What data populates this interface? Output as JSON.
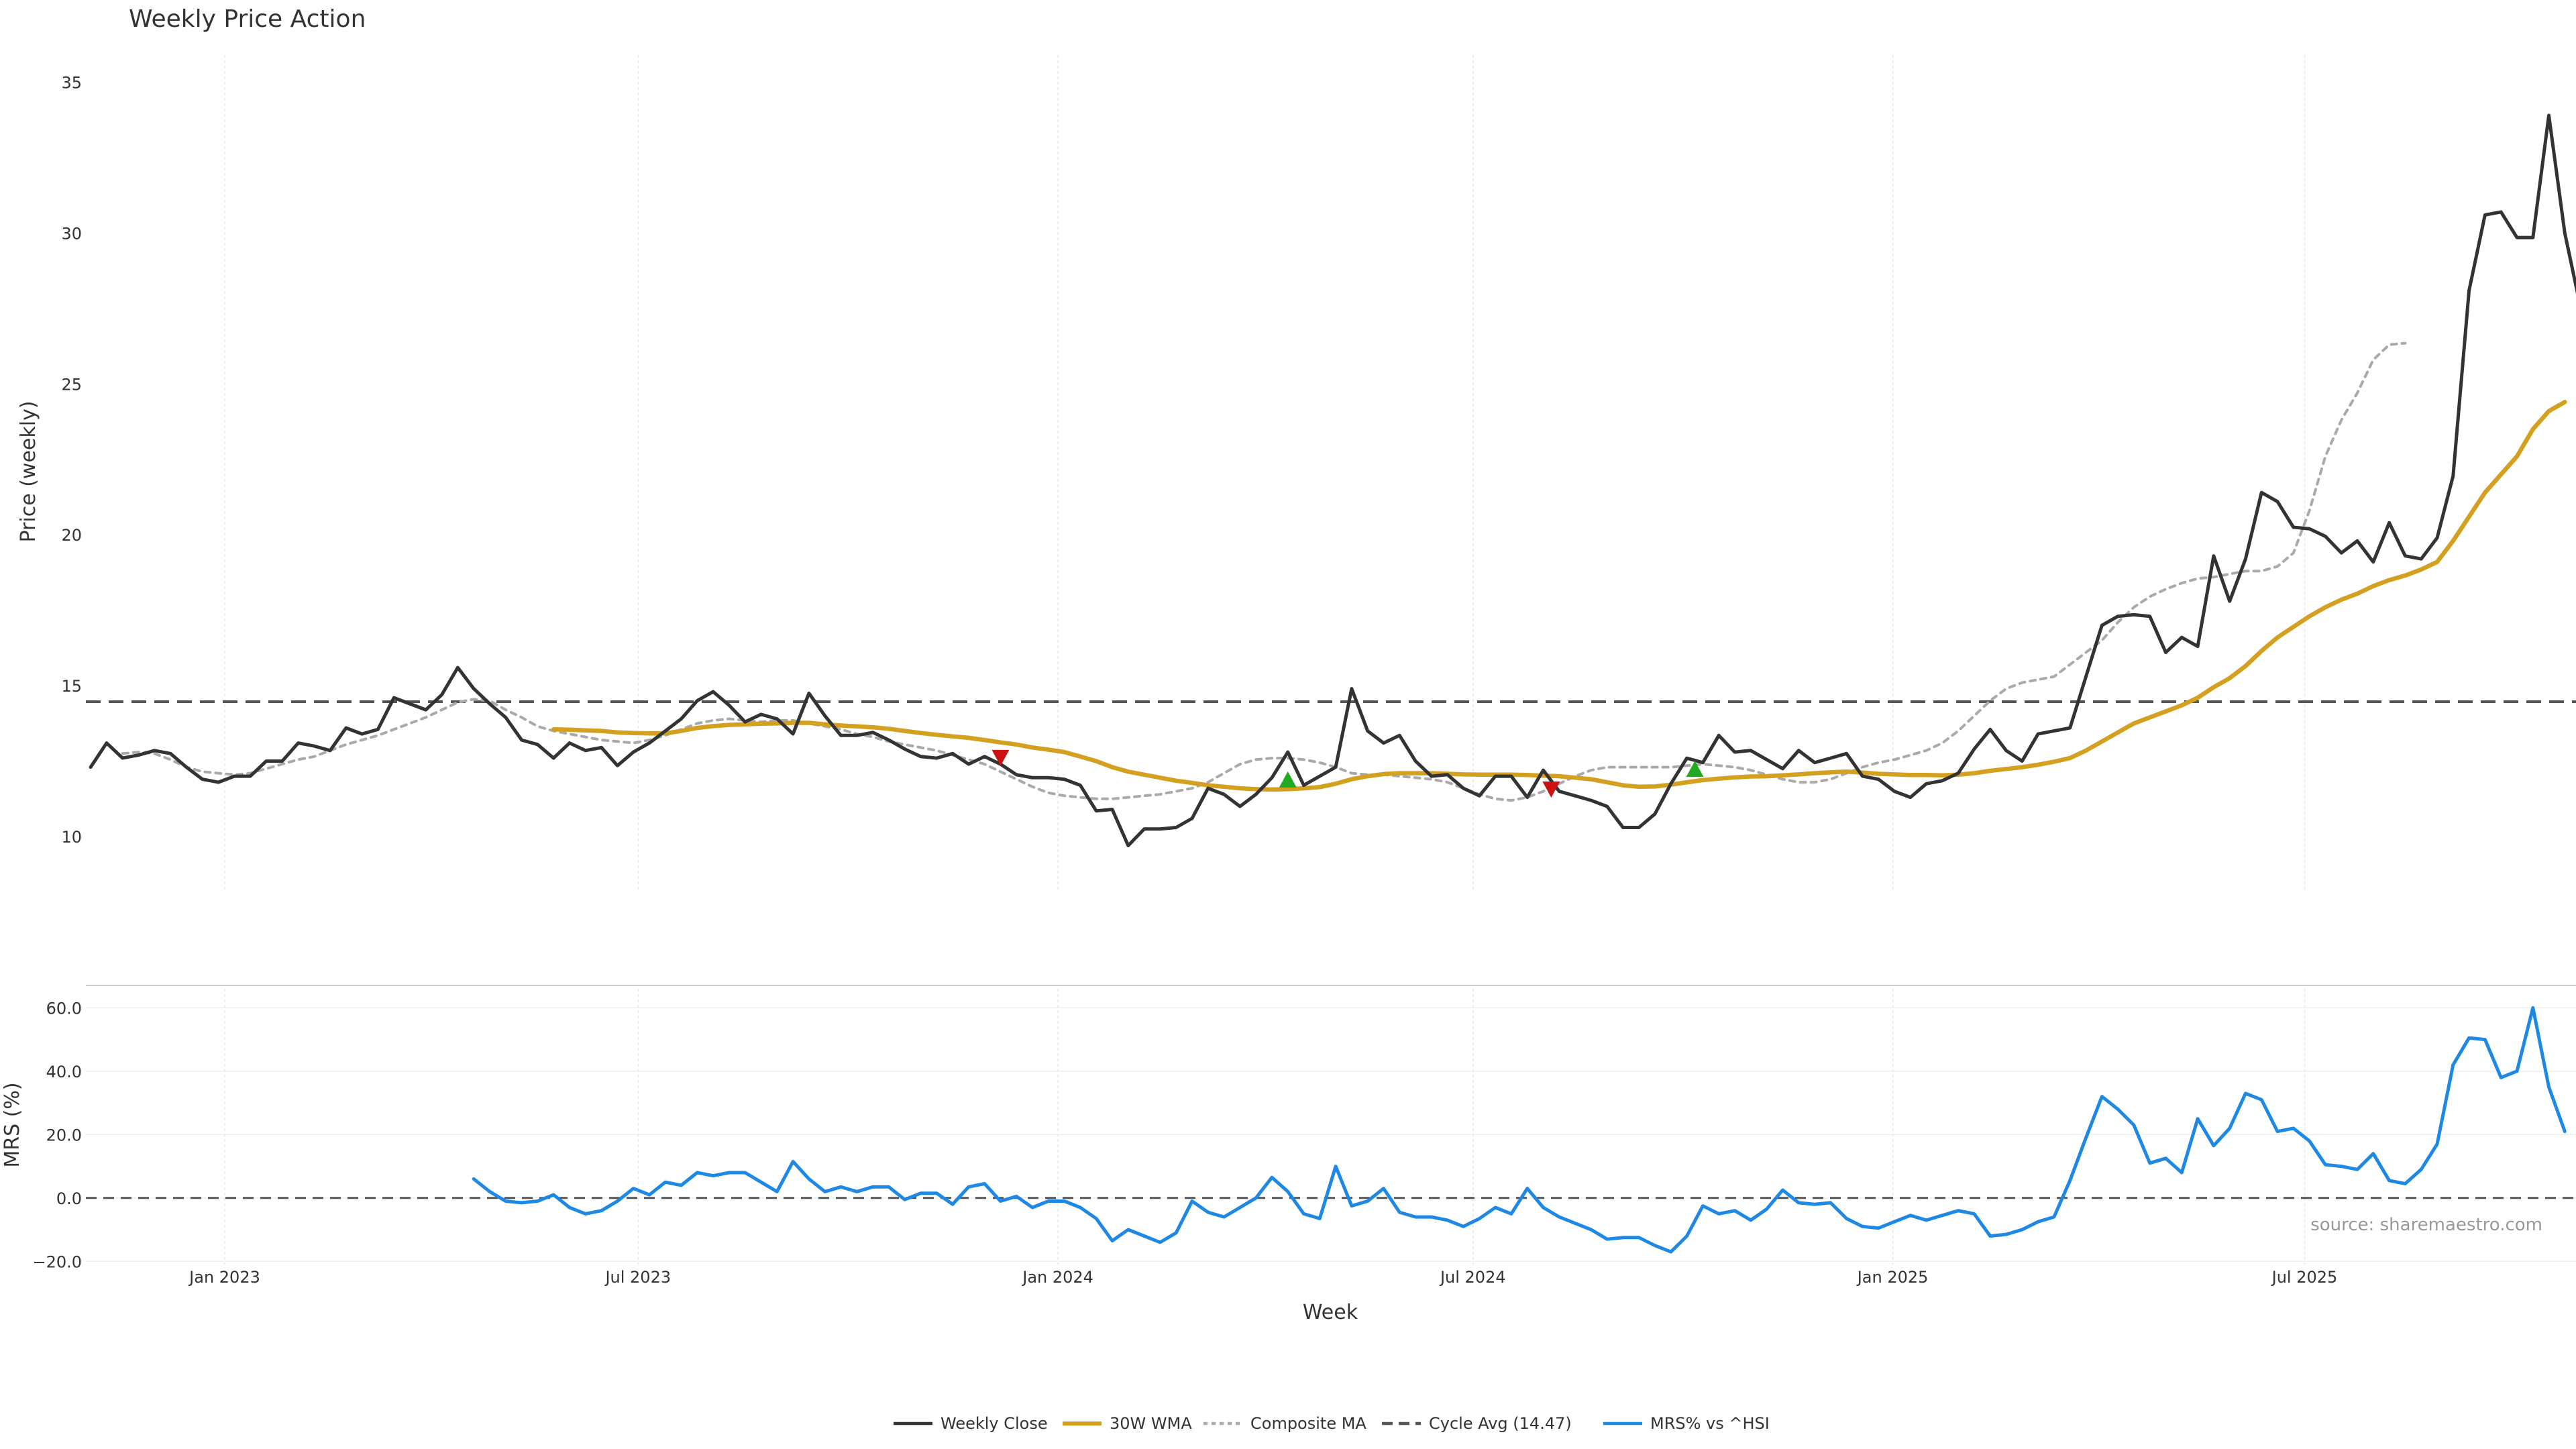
{
  "colors": {
    "close": "#333333",
    "wma": "#D4A020",
    "composite": "#AAAAAA",
    "cycle": "#555555",
    "mrs": "#1E88E5",
    "buy": "#22AA22",
    "sell": "#CC1111",
    "grid": "#E6E6E6"
  },
  "chart_data": {
    "type": "line",
    "title": "Weekly Price Action",
    "source": "source: sharemaestro.com",
    "xlabel": "Week",
    "x_ticks": [
      {
        "label": "Jan 2023",
        "week": 8.4
      },
      {
        "label": "Jul 2023",
        "week": 34.3
      },
      {
        "label": "Jan 2024",
        "week": 60.6
      },
      {
        "label": "Jul 2024",
        "week": 86.6
      },
      {
        "label": "Jan 2025",
        "week": 112.9
      },
      {
        "label": "Jul 2025",
        "week": 138.7
      }
    ],
    "xlim": [
      -0.3,
      155.7
    ],
    "price_panel": {
      "ylabel": "Price (weekly)",
      "ylim": [
        8.2,
        35.9
      ],
      "yticks": [
        10,
        15,
        20,
        25,
        30,
        35
      ],
      "cycle_avg": 14.47,
      "series": [
        {
          "name": "Weekly Close",
          "style": "solid",
          "start": 0,
          "values": [
            12.3,
            13.1,
            12.6,
            12.7,
            12.85,
            12.75,
            12.3,
            11.9,
            11.8,
            12.0,
            12.0,
            12.5,
            12.5,
            13.1,
            13.0,
            12.85,
            13.6,
            13.4,
            13.55,
            14.6,
            14.4,
            14.2,
            14.7,
            15.6,
            14.9,
            14.4,
            13.95,
            13.2,
            13.05,
            12.6,
            13.1,
            12.85,
            12.95,
            12.35,
            12.8,
            13.1,
            13.5,
            13.9,
            14.5,
            14.8,
            14.35,
            13.8,
            14.05,
            13.9,
            13.4,
            14.75,
            14.0,
            13.35,
            13.35,
            13.45,
            13.2,
            12.9,
            12.65,
            12.6,
            12.75,
            12.4,
            12.65,
            12.4,
            12.05,
            11.95,
            11.95,
            11.9,
            11.7,
            10.85,
            10.9,
            9.7,
            10.25,
            10.25,
            10.3,
            10.6,
            11.6,
            11.4,
            11.0,
            11.4,
            11.95,
            12.8,
            11.7,
            12.0,
            12.3,
            14.9,
            13.5,
            13.1,
            13.35,
            12.5,
            12.0,
            12.05,
            11.6,
            11.35,
            12.0,
            12.0,
            11.3,
            12.2,
            11.5,
            11.35,
            11.2,
            11.0,
            10.3,
            10.3,
            10.75,
            11.75,
            12.6,
            12.45,
            13.35,
            12.8,
            12.85,
            12.55,
            12.25,
            12.85,
            12.45,
            12.6,
            12.75,
            12.0,
            11.9,
            11.5,
            11.3,
            11.75,
            11.85,
            12.1,
            12.9,
            13.55,
            12.85,
            12.5,
            13.4,
            13.5,
            13.6,
            15.3,
            17.0,
            17.3,
            17.35,
            17.3,
            16.1,
            16.6,
            16.3,
            19.3,
            17.8,
            19.2,
            21.4,
            21.1,
            20.25,
            20.2,
            19.95,
            19.4,
            19.8,
            19.1,
            20.4,
            19.3,
            19.2,
            19.9,
            21.95,
            28.1,
            30.6,
            30.7,
            29.85,
            29.85,
            33.9,
            30.0,
            27.5
          ]
        },
        {
          "name": "Composite MA",
          "style": "dotted",
          "start": 2,
          "values": [
            12.75,
            12.8,
            12.75,
            12.55,
            12.3,
            12.15,
            12.1,
            12.05,
            12.1,
            12.25,
            12.4,
            12.55,
            12.65,
            12.85,
            13.05,
            13.2,
            13.35,
            13.55,
            13.75,
            13.95,
            14.2,
            14.45,
            14.55,
            14.5,
            14.2,
            13.95,
            13.65,
            13.5,
            13.4,
            13.3,
            13.2,
            13.15,
            13.1,
            13.2,
            13.35,
            13.55,
            13.75,
            13.85,
            13.9,
            13.85,
            13.8,
            13.85,
            13.85,
            13.75,
            13.65,
            13.55,
            13.4,
            13.3,
            13.15,
            13.05,
            12.95,
            12.85,
            12.7,
            12.55,
            12.4,
            12.15,
            11.9,
            11.65,
            11.45,
            11.35,
            11.3,
            11.25,
            11.25,
            11.3,
            11.35,
            11.4,
            11.5,
            11.6,
            11.8,
            12.1,
            12.4,
            12.55,
            12.6,
            12.6,
            12.55,
            12.45,
            12.3,
            12.1,
            12.05,
            12.05,
            12.0,
            11.95,
            11.9,
            11.8,
            11.6,
            11.4,
            11.25,
            11.2,
            11.3,
            11.5,
            11.75,
            12.0,
            12.2,
            12.3,
            12.3,
            12.3,
            12.3,
            12.3,
            12.35,
            12.4,
            12.35,
            12.3,
            12.2,
            12.05,
            11.9,
            11.8,
            11.8,
            11.9,
            12.1,
            12.3,
            12.45,
            12.55,
            12.7,
            12.85,
            13.1,
            13.5,
            14.0,
            14.5,
            14.9,
            15.1,
            15.2,
            15.3,
            15.7,
            16.1,
            16.5,
            17.1,
            17.6,
            17.95,
            18.2,
            18.4,
            18.55,
            18.6,
            18.7,
            18.8,
            18.8,
            18.95,
            19.4,
            20.8,
            22.6,
            23.8,
            24.7,
            25.8,
            26.3,
            26.35
          ]
        },
        {
          "name": "30W WMA",
          "style": "solid-thick",
          "start": 29,
          "values": [
            13.55,
            13.54,
            13.52,
            13.5,
            13.45,
            13.43,
            13.42,
            13.42,
            13.5,
            13.6,
            13.66,
            13.7,
            13.72,
            13.74,
            13.75,
            13.77,
            13.77,
            13.72,
            13.68,
            13.65,
            13.62,
            13.57,
            13.5,
            13.43,
            13.37,
            13.32,
            13.27,
            13.2,
            13.12,
            13.05,
            12.95,
            12.88,
            12.8,
            12.65,
            12.5,
            12.3,
            12.15,
            12.05,
            11.95,
            11.85,
            11.78,
            11.7,
            11.65,
            11.6,
            11.57,
            11.56,
            11.57,
            11.6,
            11.64,
            11.75,
            11.9,
            12.0,
            12.07,
            12.1,
            12.1,
            12.1,
            12.08,
            12.06,
            12.05,
            12.05,
            12.05,
            12.04,
            12.02,
            12.0,
            11.95,
            11.9,
            11.8,
            11.7,
            11.65,
            11.66,
            11.72,
            11.8,
            11.87,
            11.92,
            11.96,
            11.99,
            12.0,
            12.03,
            12.06,
            12.1,
            12.13,
            12.15,
            12.12,
            12.08,
            12.06,
            12.04,
            12.04,
            12.03,
            12.05,
            12.1,
            12.18,
            12.24,
            12.3,
            12.38,
            12.48,
            12.6,
            12.85,
            13.15,
            13.45,
            13.75,
            13.95,
            14.15,
            14.35,
            14.6,
            14.95,
            15.25,
            15.65,
            16.15,
            16.6,
            16.95,
            17.3,
            17.6,
            17.85,
            18.05,
            18.3,
            18.5,
            18.65,
            18.85,
            19.1,
            19.8,
            20.6,
            21.4,
            22.0,
            22.6,
            23.5,
            24.1,
            24.4
          ]
        }
      ],
      "signals": [
        {
          "type": "sell",
          "week": 57,
          "price": 12.65
        },
        {
          "type": "buy",
          "week": 75,
          "price": 11.85
        },
        {
          "type": "sell",
          "week": 91.5,
          "price": 11.6
        },
        {
          "type": "buy",
          "week": 100.5,
          "price": 12.2
        }
      ]
    },
    "mrs_panel": {
      "ylabel": "MRS (%)",
      "ylim": [
        -21,
        66
      ],
      "yticks": [
        -20,
        0,
        20,
        40,
        60
      ],
      "ytick_labels": [
        "−20.0",
        "0.0",
        "20.0",
        "40.0",
        "60.0"
      ],
      "zero_line": 0,
      "series": [
        {
          "name": "MRS% vs ^HSI",
          "style": "solid",
          "start": 24,
          "values": [
            6,
            2,
            -1,
            -1.5,
            -1,
            1,
            -3,
            -5,
            -4,
            -1,
            3,
            1,
            5,
            4,
            8,
            7,
            8,
            8,
            5,
            2,
            11.5,
            6,
            2,
            3.5,
            2,
            3.5,
            3.5,
            -0.5,
            1.5,
            1.5,
            -2,
            3.5,
            4.5,
            -1,
            0.5,
            -3,
            -1,
            -1,
            -3,
            -6.5,
            -13.5,
            -10,
            -12,
            -14,
            -11,
            -1,
            -4.5,
            -6,
            -3,
            0,
            6.5,
            2,
            -5,
            -6.5,
            10,
            -2.5,
            -1,
            3,
            -4.5,
            -6,
            -6,
            -7,
            -9,
            -6.5,
            -3,
            -5,
            3,
            -3,
            -6,
            -8,
            -10,
            -13,
            -12.5,
            -12.5,
            -15,
            -17,
            -12,
            -2.5,
            -5,
            -4,
            -7,
            -3.5,
            2.5,
            -1.5,
            -2,
            -1.5,
            -6.5,
            -9,
            -9.5,
            -7.5,
            -5.5,
            -7,
            -5.5,
            -4,
            -5,
            -12,
            -11.5,
            -10,
            -7.5,
            -6,
            5.5,
            19,
            32,
            28,
            23,
            11,
            12.5,
            8,
            25,
            16.5,
            22,
            33,
            31,
            21,
            22,
            18,
            10.5,
            10,
            9,
            14,
            5.5,
            4.5,
            9,
            17,
            42,
            50.5,
            50,
            38,
            40,
            60,
            35,
            21
          ]
        }
      ]
    },
    "legend": [
      {
        "label": "Weekly Close",
        "key": "close",
        "style": "solid"
      },
      {
        "label": "30W WMA",
        "key": "wma",
        "style": "solid-thick"
      },
      {
        "label": "Composite MA",
        "key": "composite",
        "style": "dotted"
      },
      {
        "label": "Cycle Avg (14.47)",
        "key": "cycle",
        "style": "dashed"
      },
      {
        "label": "MRS% vs ^HSI",
        "key": "mrs",
        "style": "solid"
      }
    ],
    "legend_position": "bottom-center",
    "grid": true
  }
}
